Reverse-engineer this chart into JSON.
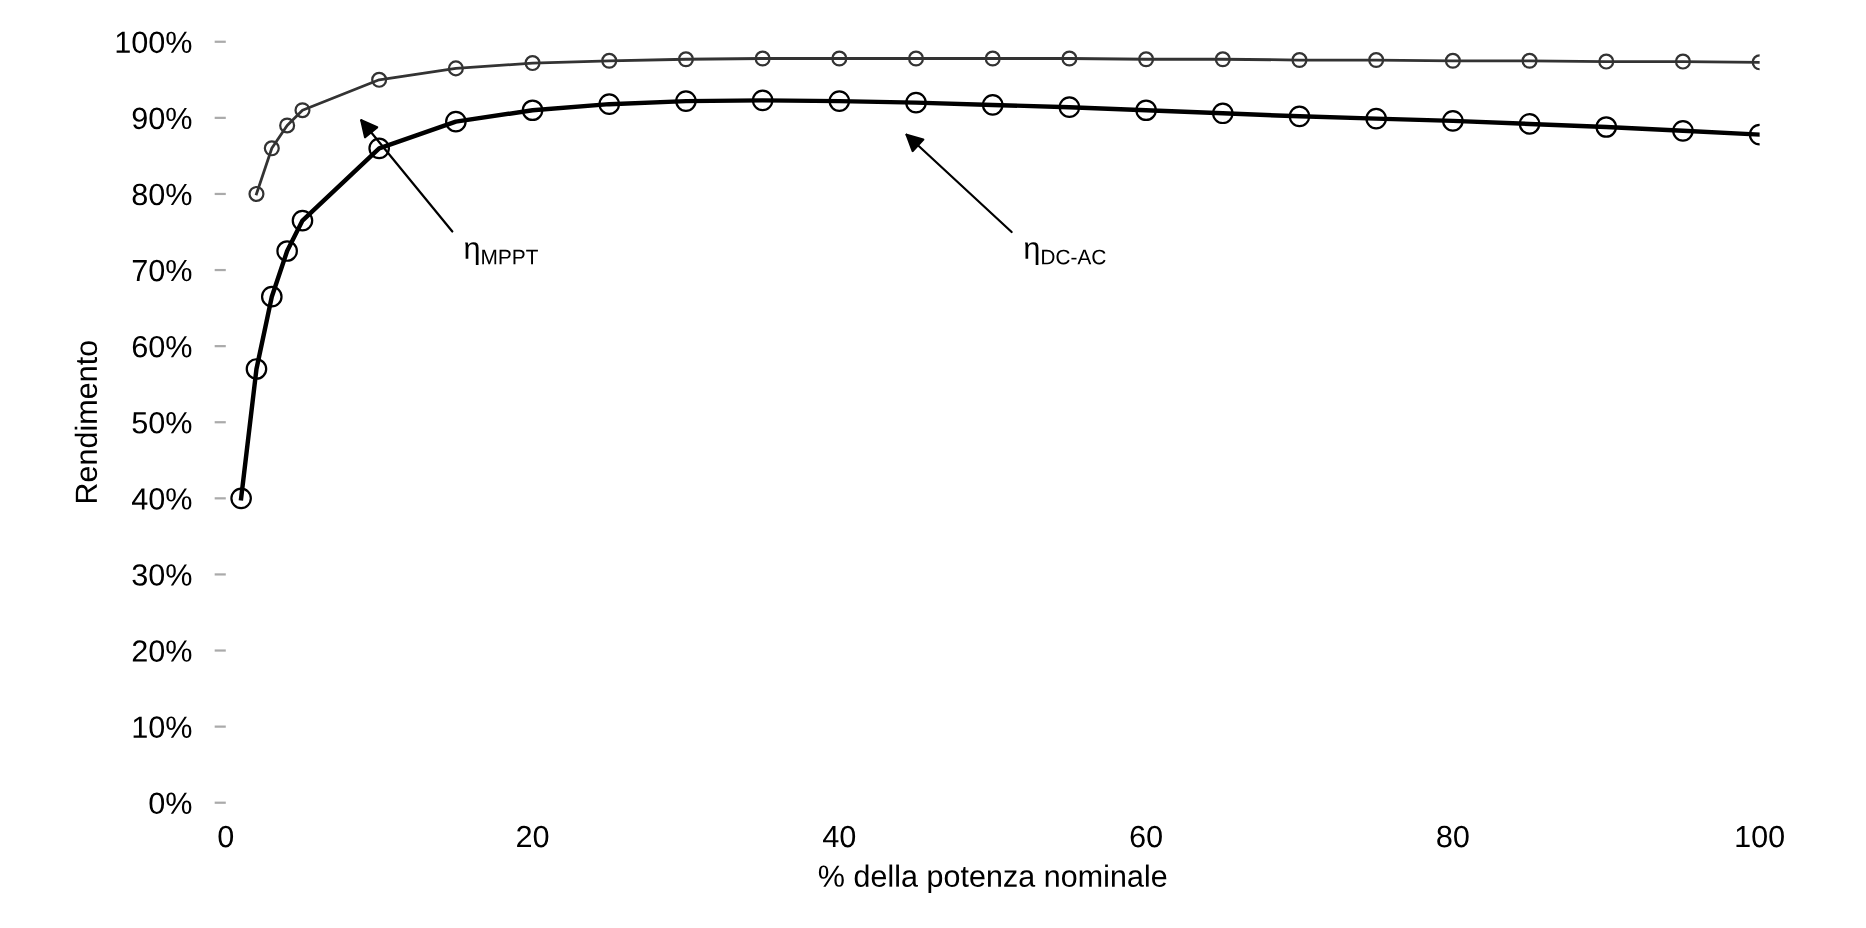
{
  "chart_data": {
    "type": "line",
    "xlabel": "% della potenza nominale",
    "ylabel": "Rendimento",
    "xlim": [
      0,
      100
    ],
    "xticks": [
      0,
      20,
      40,
      60,
      80,
      100
    ],
    "ylim": [
      0,
      100
    ],
    "yticks": [
      {
        "value": 0,
        "label": "0%"
      },
      {
        "value": 10,
        "label": "10%"
      },
      {
        "value": 20,
        "label": "20%"
      },
      {
        "value": 30,
        "label": "30%"
      },
      {
        "value": 40,
        "label": "40%"
      },
      {
        "value": 50,
        "label": "50%"
      },
      {
        "value": 60,
        "label": "60%"
      },
      {
        "value": 70,
        "label": "70%"
      },
      {
        "value": 80,
        "label": "80%"
      },
      {
        "value": 90,
        "label": "90%"
      },
      {
        "value": 100,
        "label": "100%"
      }
    ],
    "grid": false,
    "legend": false,
    "marker": "circle",
    "line_style": "solid",
    "series": [
      {
        "color": "#333333",
        "x": [
          2,
          3,
          4,
          5,
          10,
          15,
          20,
          25,
          30,
          35,
          40,
          45,
          50,
          55,
          60,
          65,
          70,
          75,
          80,
          85,
          90,
          95,
          100
        ],
        "values": [
          80,
          86,
          89,
          91,
          95,
          96.5,
          97.2,
          97.5,
          97.7,
          97.8,
          97.8,
          97.8,
          97.8,
          97.8,
          97.7,
          97.7,
          97.6,
          97.6,
          97.5,
          97.5,
          97.4,
          97.4,
          97.3
        ]
      },
      {
        "color": "#000000",
        "x": [
          1,
          2,
          3,
          4,
          5,
          10,
          15,
          20,
          25,
          30,
          35,
          40,
          45,
          50,
          55,
          60,
          65,
          70,
          75,
          80,
          85,
          90,
          95,
          100
        ],
        "values": [
          40,
          57,
          66.5,
          72.5,
          76.5,
          86,
          89.5,
          91,
          91.8,
          92.2,
          92.3,
          92.2,
          92,
          91.7,
          91.4,
          91,
          90.6,
          90.2,
          89.9,
          89.6,
          89.2,
          88.8,
          88.3,
          87.8
        ]
      }
    ],
    "annotations": [
      "η$_{MPPT}$",
      "η$_{DC-AC}$"
    ]
  }
}
